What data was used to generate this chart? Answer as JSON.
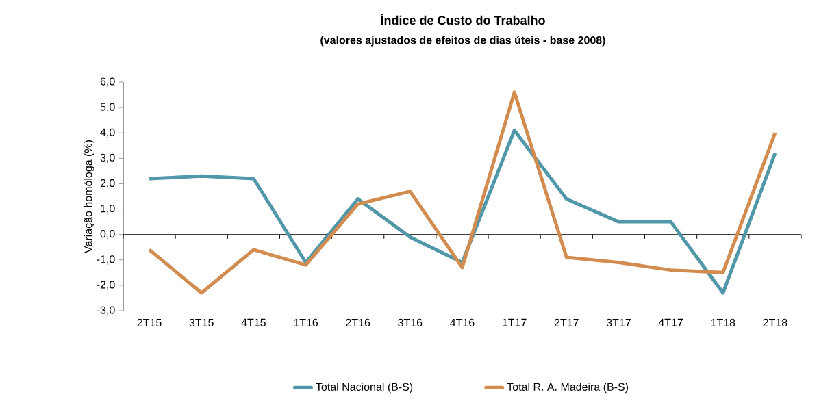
{
  "chart_data": {
    "type": "line",
    "title": "Índice de Custo do Trabalho",
    "subtitle": "(valores ajustados de efeitos de dias úteis - base 2008)",
    "ylabel": "Variação homóloga (%)",
    "categories": [
      "2T15",
      "3T15",
      "4T15",
      "1T16",
      "2T16",
      "3T16",
      "4T16",
      "1T17",
      "2T17",
      "3T17",
      "4T17",
      "1T18",
      "2T18"
    ],
    "series": [
      {
        "name": "Total Nacional (B-S)",
        "color": "#4f97a9",
        "values": [
          2.2,
          2.3,
          2.2,
          -1.1,
          1.4,
          -0.1,
          -1.1,
          4.1,
          1.4,
          0.5,
          0.5,
          -2.3,
          3.2
        ]
      },
      {
        "name": "Total R. A. Madeira (B-S)",
        "color": "#d38c4f",
        "values": [
          -0.6,
          -2.3,
          -0.6,
          -1.2,
          1.2,
          1.7,
          -1.3,
          5.6,
          -0.9,
          -1.1,
          -1.4,
          -1.5,
          4.0
        ]
      }
    ],
    "ylim": [
      -3,
      6
    ],
    "yticks": [
      {
        "value": -3,
        "label": "-3,0"
      },
      {
        "value": -2,
        "label": "-2,0"
      },
      {
        "value": -1,
        "label": "-1,0"
      },
      {
        "value": 0,
        "label": "0,0"
      },
      {
        "value": 1,
        "label": "1,0"
      },
      {
        "value": 2,
        "label": "2,0"
      },
      {
        "value": 3,
        "label": "3,0"
      },
      {
        "value": 4,
        "label": "4,0"
      },
      {
        "value": 5,
        "label": "5,0"
      },
      {
        "value": 6,
        "label": "6,0"
      }
    ],
    "ref_lines": [
      {
        "axis": "y",
        "value": 0,
        "color": "#000000"
      }
    ],
    "grid": false,
    "legend": "bottom",
    "marker": "none",
    "line_style": "solid"
  }
}
